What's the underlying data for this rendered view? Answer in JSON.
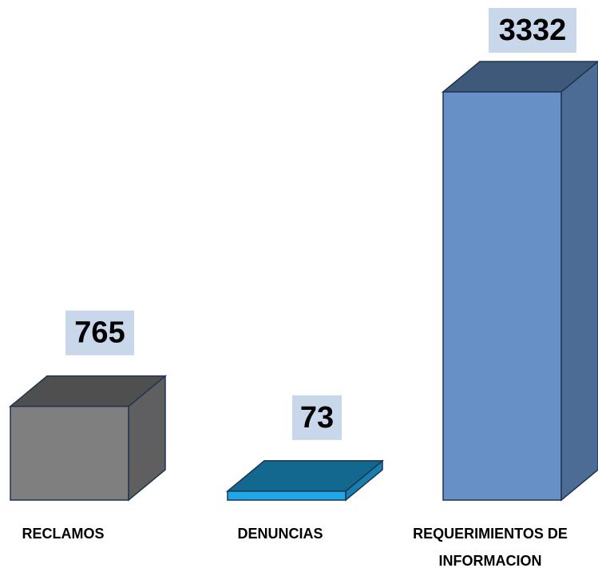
{
  "chart_data": {
    "type": "bar",
    "categories": [
      "RECLAMOS",
      "DENUNCIAS",
      "REQUERIMIENTOS DE INFORMACION"
    ],
    "values": [
      765,
      73,
      3332
    ],
    "colors": [
      "#7f7f7f",
      "#1ea8e8",
      "#6690c6"
    ]
  }
}
